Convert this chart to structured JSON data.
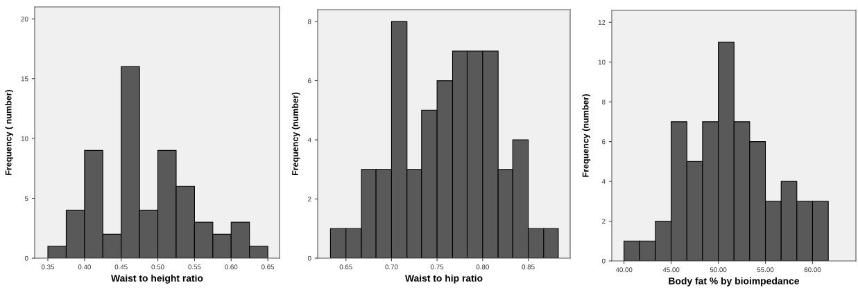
{
  "chart_data": [
    {
      "type": "histogram",
      "xlabel": "Waist to height ratio",
      "ylabel": "Frequency ( number)",
      "color": "#595959",
      "bins": [
        0.35,
        0.375,
        0.4,
        0.425,
        0.45,
        0.475,
        0.5,
        0.525,
        0.55,
        0.575,
        0.6,
        0.625,
        0.65
      ],
      "values": [
        1,
        4,
        9,
        2,
        16,
        4,
        9,
        6,
        3,
        2,
        3,
        1
      ],
      "xlim": [
        0.332,
        0.666
      ],
      "ylim": [
        0,
        21
      ],
      "xticks": [
        {
          "value": 0.35,
          "label": "0.35"
        },
        {
          "value": 0.4,
          "label": "0.40"
        },
        {
          "value": 0.45,
          "label": "0.45"
        },
        {
          "value": 0.5,
          "label": "0.50"
        },
        {
          "value": 0.55,
          "label": "0.55"
        },
        {
          "value": 0.6,
          "label": "0.60"
        },
        {
          "value": 0.65,
          "label": "0.65"
        }
      ],
      "yticks": [
        0,
        5,
        10,
        15,
        20
      ],
      "grid": false
    },
    {
      "type": "histogram",
      "xlabel": "Waist to hip ratio",
      "ylabel": "Frequency (number)",
      "color": "#595959",
      "bins": [
        0.633,
        0.65,
        0.667,
        0.683,
        0.7,
        0.717,
        0.733,
        0.75,
        0.767,
        0.783,
        0.8,
        0.817,
        0.833,
        0.85,
        0.867,
        0.883
      ],
      "values": [
        1,
        1,
        3,
        3,
        8,
        3,
        5,
        6,
        7,
        7,
        7,
        3,
        4,
        1,
        1
      ],
      "xlim": [
        0.619,
        0.896
      ],
      "ylim": [
        0,
        8.4
      ],
      "xticks": [
        {
          "value": 0.65,
          "label": "0.65"
        },
        {
          "value": 0.7,
          "label": "0.70"
        },
        {
          "value": 0.75,
          "label": "0.75"
        },
        {
          "value": 0.8,
          "label": "0.80"
        },
        {
          "value": 0.85,
          "label": "0.85"
        }
      ],
      "yticks": [
        0,
        2,
        4,
        6,
        8
      ],
      "grid": false
    },
    {
      "type": "histogram",
      "xlabel": "Body fat % by bioimpedance",
      "ylabel": "Frequency (number)",
      "color": "#595959",
      "bins": [
        40,
        41.67,
        43.33,
        45,
        46.67,
        48.33,
        50,
        51.67,
        53.33,
        55,
        56.67,
        58.33,
        60,
        61.67
      ],
      "values": [
        1,
        1,
        2,
        7,
        5,
        7,
        11,
        7,
        6,
        3,
        4,
        3,
        3
      ],
      "xlim": [
        38.7,
        64.6
      ],
      "ylim": [
        0,
        12.6
      ],
      "xticks": [
        {
          "value": 40,
          "label": "40.00"
        },
        {
          "value": 45,
          "label": "45.00"
        },
        {
          "value": 50,
          "label": "50.00"
        },
        {
          "value": 55,
          "label": "55.00"
        },
        {
          "value": 60,
          "label": "60.00"
        }
      ],
      "yticks": [
        0,
        2,
        4,
        6,
        8,
        10,
        12
      ],
      "grid": false
    }
  ]
}
